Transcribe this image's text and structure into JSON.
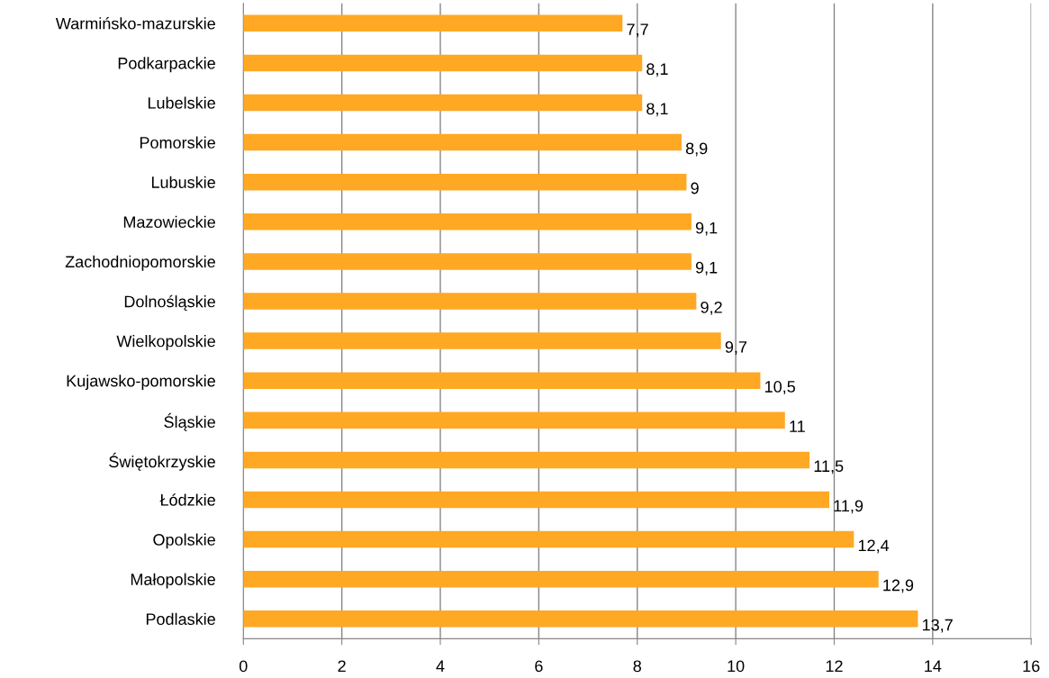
{
  "chart_data": {
    "type": "bar",
    "orientation": "horizontal",
    "categories": [
      "Warmińsko-mazurskie",
      "Podkarpackie",
      "Lubelskie",
      "Pomorskie",
      "Lubuskie",
      "Mazowieckie",
      "Zachodniopomorskie",
      "Dolnośląskie",
      "Wielkopolskie",
      "Kujawsko-pomorskie",
      "Śląskie",
      "Świętokrzyskie",
      "Łódzkie",
      "Opolskie",
      "Małopolskie",
      "Podlaskie"
    ],
    "values": [
      7.7,
      8.1,
      8.1,
      8.9,
      9,
      9.1,
      9.1,
      9.2,
      9.7,
      10.5,
      11,
      11.5,
      11.9,
      12.4,
      12.9,
      13.7
    ],
    "value_labels": [
      "7,7",
      "8,1",
      "8,1",
      "8,9",
      "9",
      "9,1",
      "9,1",
      "9,2",
      "9,7",
      "10,5",
      "11",
      "11,5",
      "11,9",
      "12,4",
      "12,9",
      "13,7"
    ],
    "color": "#ffa824",
    "xlim": [
      0,
      16
    ],
    "xticks": [
      0,
      2,
      4,
      6,
      8,
      10,
      12,
      14,
      16
    ],
    "grid": "x"
  }
}
